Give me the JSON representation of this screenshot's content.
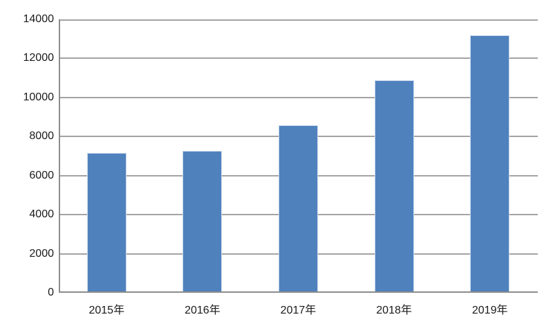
{
  "chart_data": {
    "type": "bar",
    "categories": [
      "2015年",
      "2016年",
      "2017年",
      "2018年",
      "2019年"
    ],
    "values": [
      7100,
      7200,
      8500,
      10800,
      13100
    ],
    "title": "",
    "xlabel": "",
    "ylabel": "",
    "ylim": [
      0,
      14000
    ],
    "yticks": [
      0,
      2000,
      4000,
      6000,
      8000,
      10000,
      12000,
      14000
    ],
    "grid": true,
    "legend_position": "none",
    "colors": {
      "bar_fill": "#4f81bd",
      "bar_border": "#c9d8ec",
      "gridline": "#a3a3a3",
      "axis_line": "#8c8c8c",
      "text": "#1a1a1a",
      "background": "#ffffff"
    }
  }
}
